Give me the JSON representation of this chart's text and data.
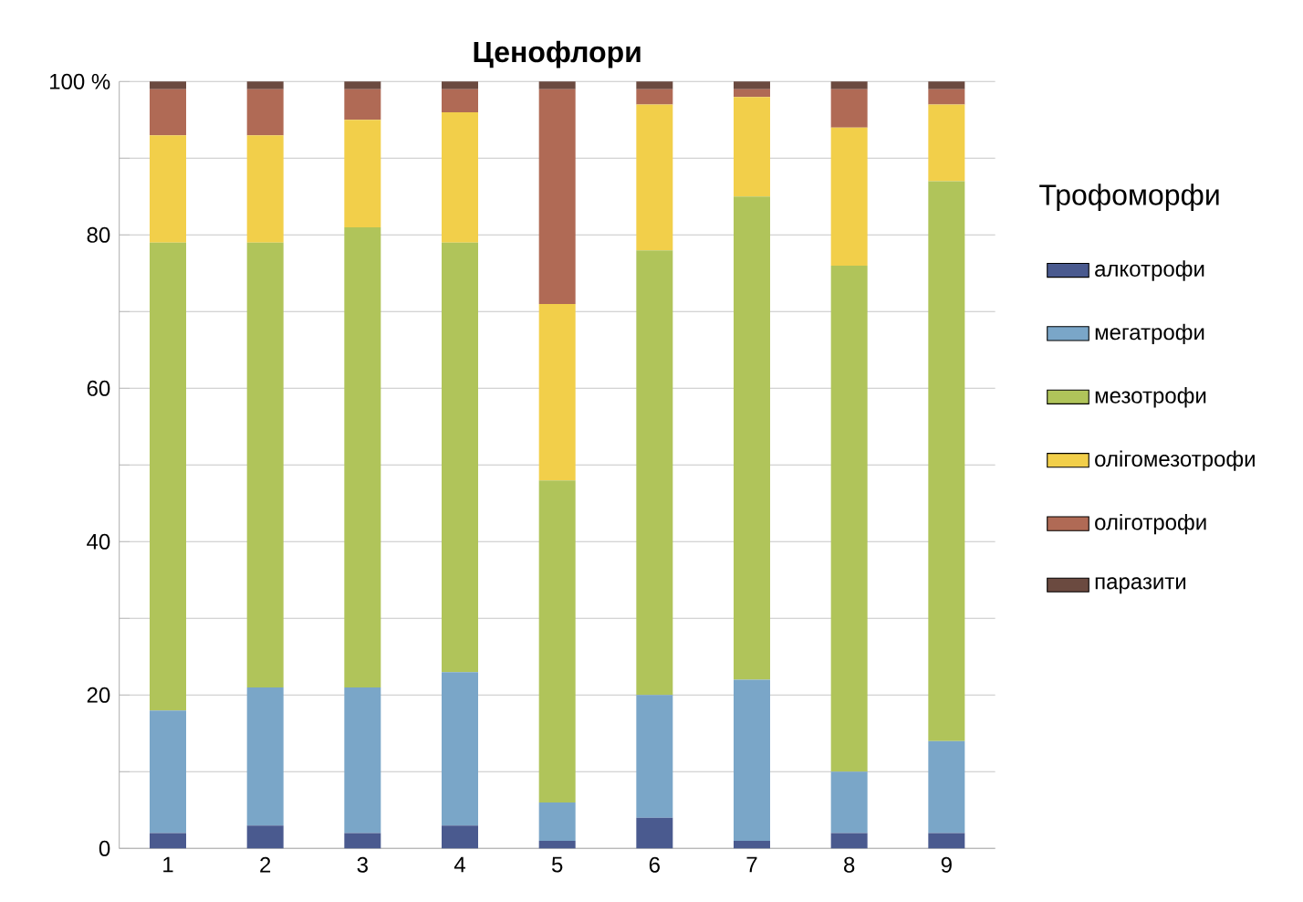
{
  "chart_data": {
    "type": "bar",
    "title": "Ценофлори",
    "legend_title": "Трофоморфи",
    "categories": [
      "1",
      "2",
      "3",
      "4",
      "5",
      "6",
      "7",
      "8",
      "9"
    ],
    "stacked": true,
    "series": [
      {
        "name": "алкотрофи",
        "color": "#4a5a8f",
        "values": [
          2,
          3,
          2,
          3,
          1,
          4,
          1,
          2,
          2
        ]
      },
      {
        "name": "мегатрофи",
        "color": "#7aa6c8",
        "values": [
          16,
          18,
          19,
          20,
          5,
          16,
          21,
          8,
          12
        ]
      },
      {
        "name": "мезотрофи",
        "color": "#b0c45a",
        "values": [
          61,
          58,
          60,
          56,
          42,
          58,
          63,
          66,
          73
        ]
      },
      {
        "name": "олігомезотрофи",
        "color": "#f2cf4a",
        "values": [
          14,
          14,
          14,
          17,
          23,
          19,
          13,
          18,
          10
        ]
      },
      {
        "name": "оліготрофи",
        "color": "#b06a55",
        "values": [
          6,
          6,
          4,
          3,
          28,
          2,
          1,
          5,
          2
        ]
      },
      {
        "name": "паразити",
        "color": "#6b4a40",
        "values": [
          1,
          1,
          1,
          1,
          1,
          1,
          1,
          1,
          1
        ]
      }
    ],
    "ylim": [
      0,
      100
    ],
    "yticks": [
      0,
      {
        "value": 10,
        "label": null
      },
      20,
      {
        "value": 30,
        "label": null
      },
      40,
      {
        "value": 50,
        "label": null
      },
      60,
      {
        "value": 70,
        "label": null
      },
      80,
      {
        "value": 90,
        "label": null
      },
      {
        "value": 100,
        "label": "100 %"
      }
    ],
    "grid": "y",
    "legend": "right"
  }
}
